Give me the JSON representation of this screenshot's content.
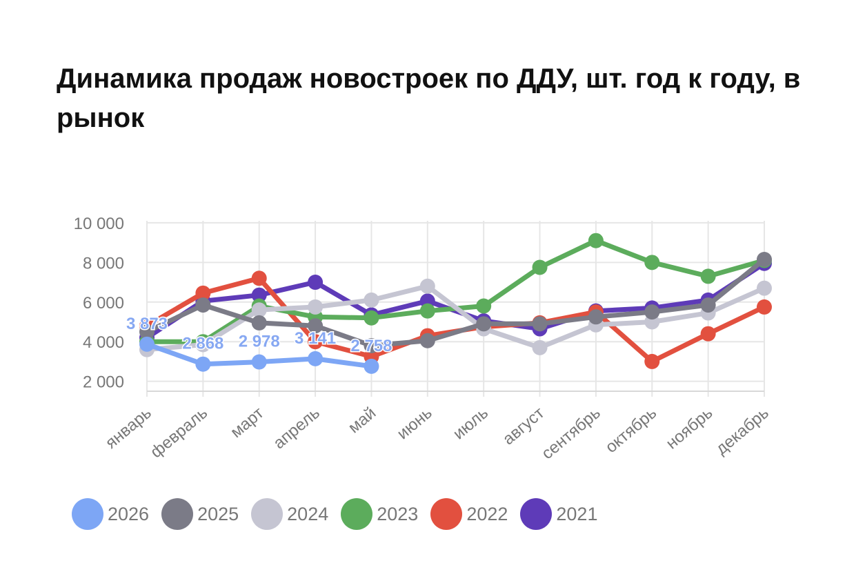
{
  "title": "Динамика продаж новостроек по ДДУ, шт. год к году, в рынок",
  "chart_data": {
    "type": "line",
    "title": "Динамика продаж новостроек по ДДУ, шт. год к году, в рынок",
    "xlabel": "",
    "ylabel": "",
    "categories": [
      "январь",
      "февраль",
      "март",
      "апрель",
      "май",
      "июнь",
      "июль",
      "август",
      "сентябрь",
      "октябрь",
      "ноябрь",
      "декабрь"
    ],
    "y_ticks": [
      "10 000",
      "8 000",
      "6 000",
      "4 000",
      "2 000"
    ],
    "y_tick_values": [
      10000,
      8000,
      6000,
      4000,
      2000
    ],
    "ylim": [
      1500,
      10100
    ],
    "grid": true,
    "legend_position": "bottom",
    "series": [
      {
        "name": "2021",
        "color": "#5e3bb8",
        "values": [
          4200,
          6050,
          6350,
          7000,
          5350,
          6050,
          5050,
          4650,
          5550,
          5700,
          6100,
          7950
        ]
      },
      {
        "name": "2022",
        "color": "#e2503f",
        "values": [
          4800,
          6450,
          7200,
          4000,
          3250,
          4300,
          4750,
          4950,
          5500,
          3000,
          4400,
          5750
        ]
      },
      {
        "name": "2023",
        "color": "#5cac5c",
        "values": [
          4000,
          4000,
          5800,
          5250,
          5200,
          5550,
          5800,
          7750,
          9100,
          8000,
          7300,
          8100
        ]
      },
      {
        "name": "2024",
        "color": "#c5c5d2",
        "values": [
          3600,
          3850,
          5600,
          5750,
          6100,
          6800,
          4650,
          3700,
          4850,
          5000,
          5450,
          6700
        ]
      },
      {
        "name": "2025",
        "color": "#7b7b87",
        "values": [
          4500,
          5850,
          4950,
          4800,
          3800,
          4050,
          4900,
          4900,
          5250,
          5500,
          5850,
          8150
        ]
      },
      {
        "name": "2026",
        "color": "#7da6f5",
        "values": [
          3873,
          2868,
          2978,
          3141,
          2758,
          null,
          null,
          null,
          null,
          null,
          null,
          null
        ],
        "data_labels": [
          "3 873",
          "2 868",
          "2 978",
          "3 141",
          "2 758"
        ]
      }
    ]
  }
}
